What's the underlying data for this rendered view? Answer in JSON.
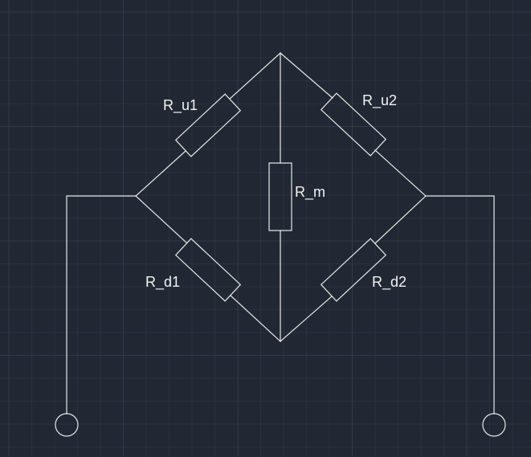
{
  "colors": {
    "background": "#222833",
    "grid_minor": "#2a313d",
    "grid_major": "#323a47",
    "line": "#e8e8e8",
    "text": "#f2f2f2"
  },
  "labels": {
    "r_u1": "R_u1",
    "r_u2": "R_u2",
    "r_m": "R_m",
    "r_d1": "R_d1",
    "r_d2": "R_d2"
  }
}
